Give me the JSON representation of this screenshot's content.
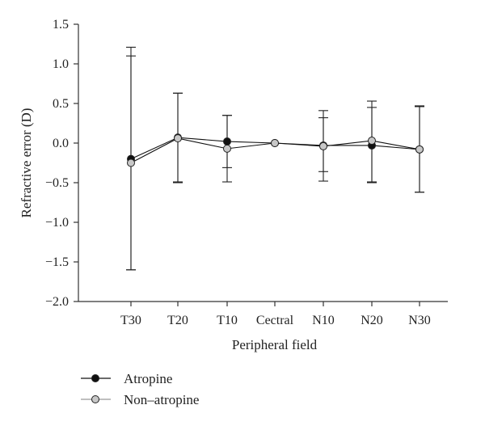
{
  "chart_data": {
    "type": "line",
    "title": "",
    "xlabel": "Peripheral field",
    "ylabel": "Refractive error (D)",
    "categories": [
      "T30",
      "T20",
      "T10",
      "Cectral",
      "N10",
      "N20",
      "N30"
    ],
    "ylim": [
      -2.0,
      1.5
    ],
    "yticks": [
      1.5,
      1.0,
      0.5,
      0.0,
      -0.5,
      -1.0,
      -1.5,
      -2.0
    ],
    "ytick_labels": [
      "1.5",
      "1.0",
      "0.5",
      "0.0",
      "−0.5",
      "−1.0",
      "−1.5",
      "−2.0"
    ],
    "grid": false,
    "legend_position": "bottom-left",
    "series": [
      {
        "name": "Atropine",
        "color": "#111111",
        "marker_fill": "#111111",
        "values": [
          -0.2,
          0.07,
          0.02,
          0.0,
          -0.03,
          -0.03,
          -0.08
        ],
        "error_upper": [
          1.1,
          0.63,
          0.35,
          0.0,
          0.32,
          0.45,
          0.46
        ],
        "error_lower": [
          -1.6,
          -0.49,
          -0.31,
          0.0,
          -0.36,
          -0.49,
          -0.62
        ]
      },
      {
        "name": "Non-atropine",
        "color": "#111111",
        "marker_fill": "#c8c8c8",
        "values": [
          -0.25,
          0.06,
          -0.07,
          0.0,
          -0.04,
          0.03,
          -0.08
        ],
        "error_upper": [
          1.21,
          0.63,
          0.35,
          0.0,
          0.41,
          0.53,
          0.47
        ],
        "error_lower": [
          -1.6,
          -0.5,
          -0.49,
          0.0,
          -0.48,
          -0.5,
          -0.62
        ]
      }
    ],
    "legend": [
      "Atropine",
      "Non–atropine"
    ]
  }
}
